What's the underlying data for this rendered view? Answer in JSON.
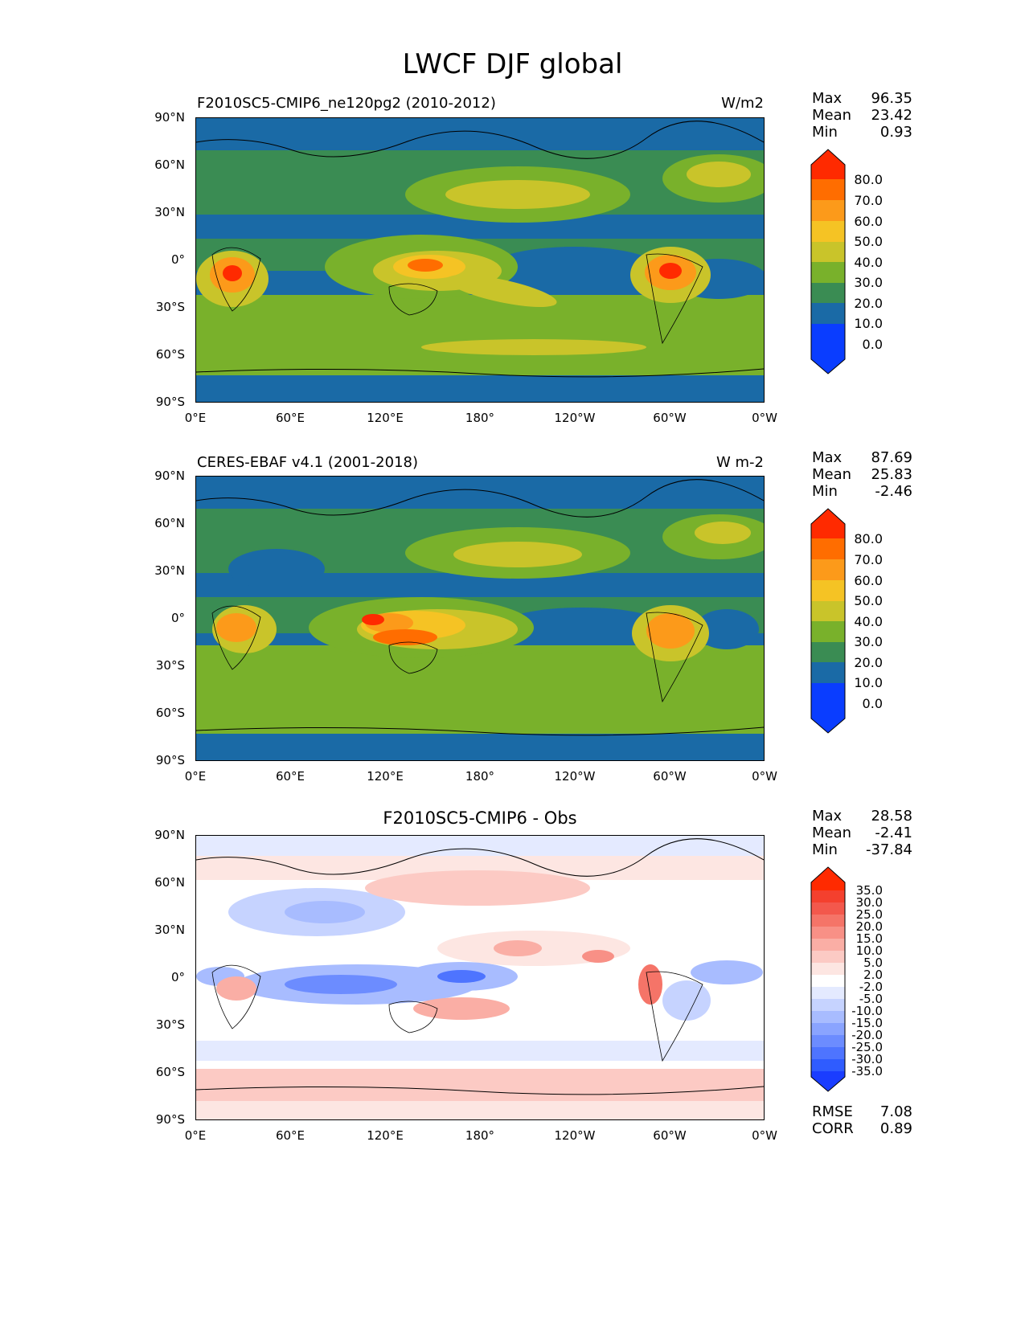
{
  "figure": {
    "title": "LWCF DJF global"
  },
  "axes": {
    "lat_ticks": [
      "90°N",
      "60°N",
      "30°N",
      "0°",
      "30°S",
      "60°S",
      "90°S"
    ],
    "lon_ticks": [
      "0°E",
      "60°E",
      "120°E",
      "180°",
      "120°W",
      "60°W",
      "0°W"
    ]
  },
  "panels": [
    {
      "title": "F2010SC5-CMIP6_ne120pg2 (2010-2012)",
      "units": "W/m2",
      "stats": {
        "max_label": "Max",
        "max": "96.35",
        "mean_label": "Mean",
        "mean": "23.42",
        "min_label": "Min",
        "min": "0.93"
      },
      "colorbar": {
        "labels": [
          "80.0",
          "70.0",
          "60.0",
          "50.0",
          "40.0",
          "30.0",
          "20.0",
          "10.0",
          "0.0"
        ],
        "colors": [
          "#ff2a00",
          "#ff6d00",
          "#fc9a1a",
          "#f5c324",
          "#c9c42a",
          "#79b12b",
          "#3a8c53",
          "#1a6aa6",
          "#0a3dff"
        ]
      }
    },
    {
      "title": "CERES-EBAF v4.1 (2001-2018)",
      "units": "W m-2",
      "stats": {
        "max_label": "Max",
        "max": "87.69",
        "mean_label": "Mean",
        "mean": "25.83",
        "min_label": "Min",
        "min": "-2.46"
      },
      "colorbar": {
        "labels": [
          "80.0",
          "70.0",
          "60.0",
          "50.0",
          "40.0",
          "30.0",
          "20.0",
          "10.0",
          "0.0"
        ],
        "colors": [
          "#ff2a00",
          "#ff6d00",
          "#fc9a1a",
          "#f5c324",
          "#c9c42a",
          "#79b12b",
          "#3a8c53",
          "#1a6aa6",
          "#0a3dff"
        ]
      }
    },
    {
      "title": "F2010SC5-CMIP6 - Obs",
      "units": "",
      "stats": {
        "max_label": "Max",
        "max": "28.58",
        "mean_label": "Mean",
        "mean": "-2.41",
        "min_label": "Min",
        "min": "-37.84"
      },
      "colorbar": {
        "labels": [
          "35.0",
          "30.0",
          "25.0",
          "20.0",
          "15.0",
          "10.0",
          "5.0",
          "2.0",
          "-2.0",
          "-5.0",
          "-10.0",
          "-15.0",
          "-20.0",
          "-25.0",
          "-30.0",
          "-35.0"
        ],
        "colors": [
          "#ff2a00",
          "#f4402e",
          "#f3584c",
          "#f57468",
          "#f89086",
          "#faaea5",
          "#fccac4",
          "#fde6e2",
          "#ffffff",
          "#e4eaff",
          "#c6d3ff",
          "#a8bcff",
          "#8aa4ff",
          "#6c8cff",
          "#4e74ff",
          "#2f5cff",
          "#1a3dff"
        ]
      },
      "rmse_label": "RMSE",
      "rmse": "7.08",
      "corr_label": "CORR",
      "corr": "0.89"
    }
  ],
  "palette": {
    "ocean_low": "#1a6aa6",
    "band_20": "#3a8c53",
    "band_30": "#79b12b",
    "band_40": "#c9c42a",
    "band_50": "#f5c324",
    "band_60": "#fc9a1a",
    "band_70": "#ff6d00",
    "band_80": "#ff2a00",
    "diff_pos": "#f89086",
    "diff_neg": "#8aa4ff"
  }
}
